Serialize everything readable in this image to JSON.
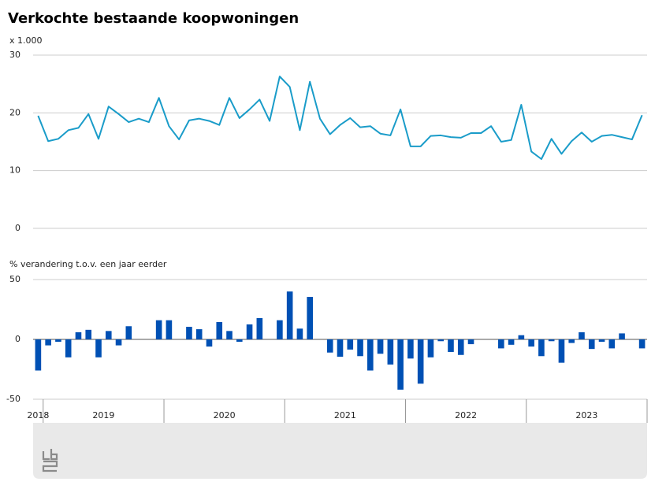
{
  "chart_data": [
    {
      "type": "line",
      "title": "Verkochte bestaande koopwoningen",
      "y_label": "x 1.000",
      "color": "#1a9cc9",
      "ylim": [
        0,
        30
      ],
      "yticks": [
        0,
        10,
        20,
        30
      ],
      "grid": true,
      "values": [
        19.5,
        15.1,
        15.5,
        17.0,
        17.4,
        19.8,
        15.5,
        21.1,
        19.8,
        18.4,
        19.0,
        18.4,
        22.6,
        17.7,
        15.4,
        18.7,
        19.0,
        18.6,
        17.9,
        22.6,
        19.1,
        20.6,
        22.3,
        18.6,
        26.3,
        24.5,
        17.0,
        25.4,
        19.0,
        16.3,
        17.9,
        19.1,
        17.5,
        17.7,
        16.4,
        16.1,
        20.6,
        14.2,
        14.2,
        16.0,
        16.1,
        15.8,
        15.7,
        16.5,
        16.5,
        17.7,
        15.0,
        15.3,
        21.4,
        13.3,
        12.0,
        15.5,
        12.9,
        15.1,
        16.6,
        15.0,
        16.0,
        16.2,
        15.8,
        15.4,
        19.6
      ]
    },
    {
      "type": "bar",
      "y_label": "% verandering t.o.v. een jaar eerder",
      "color": "#0050b4",
      "ylim": [
        -50,
        50
      ],
      "yticks": [
        -50,
        0,
        50
      ],
      "grid": true,
      "categories": [
        "2018",
        "2019",
        null,
        null,
        null,
        null,
        null,
        null,
        null,
        null,
        null,
        null,
        null,
        "2020",
        null,
        null,
        null,
        null,
        null,
        null,
        null,
        null,
        null,
        null,
        null,
        "2021",
        null,
        null,
        null,
        null,
        null,
        null,
        null,
        null,
        null,
        null,
        null,
        "2022",
        null,
        null,
        null,
        null,
        null,
        null,
        null,
        null,
        null,
        null,
        null,
        "2023",
        null,
        null,
        null,
        null,
        null,
        null,
        null,
        null,
        null,
        null,
        null
      ],
      "values": [
        -26,
        -5,
        -2,
        -15,
        6,
        8,
        -15,
        7,
        -5,
        11,
        0,
        0,
        16,
        16,
        0,
        10.5,
        8.5,
        -6,
        14.5,
        7,
        -2,
        12.5,
        17.8,
        0,
        16,
        40,
        9,
        35.5,
        0,
        -11,
        -14.5,
        -8.5,
        -14,
        -26,
        -12,
        -21,
        -42,
        -16,
        -37,
        -15,
        -1.5,
        -10.5,
        -13,
        -4,
        0,
        0,
        -7.5,
        -4.5,
        3.5,
        -6,
        -14,
        -1.5,
        -19.5,
        -3,
        6,
        -8,
        -2,
        -7.5,
        5,
        0,
        -7.5
      ]
    }
  ]
}
